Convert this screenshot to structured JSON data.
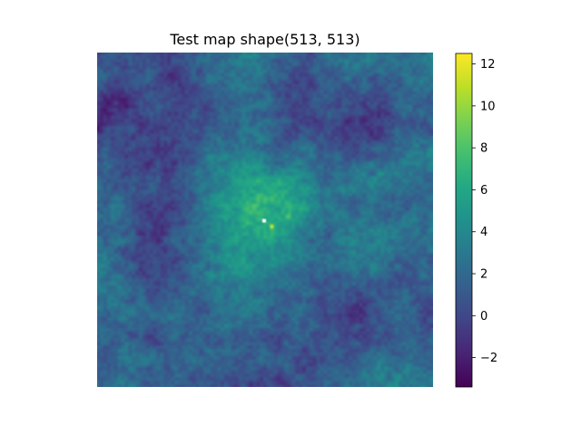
{
  "chart_data": {
    "type": "heatmap",
    "title": "Test map shape(513, 513)",
    "xlabel": "",
    "ylabel": "",
    "shape": [
      513,
      513
    ],
    "axes_visible": false,
    "colormap": "viridis",
    "colorbar": {
      "range": [
        -3.4,
        12.5
      ],
      "ticks": [
        -2,
        0,
        2,
        4,
        6,
        8,
        10,
        12
      ],
      "tick_labels": [
        "−2",
        "0",
        "2",
        "4",
        "6",
        "8",
        "10",
        "12"
      ]
    },
    "background_level": 1.0,
    "peak": {
      "value": 12.5,
      "location_fraction": [
        0.52,
        0.52
      ]
    },
    "masked_pixel": {
      "color": "#ffffff",
      "location_fraction": [
        0.5,
        0.5
      ]
    },
    "cluster_halo": {
      "peak_level": 5.0,
      "radius_fraction": 0.13
    },
    "colors": {
      "viridis_low": "#440154",
      "viridis_mid": "#21918c",
      "viridis_high": "#fde725"
    }
  }
}
